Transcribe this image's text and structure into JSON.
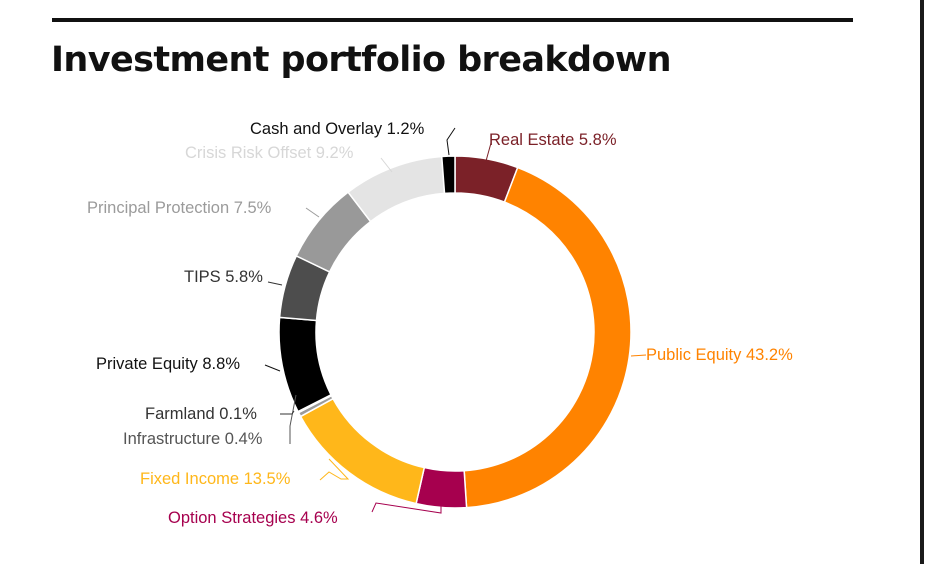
{
  "chart_data": {
    "type": "pie",
    "variant": "donut",
    "title": "Investment portfolio breakdown",
    "slices": [
      {
        "name": "Real Estate",
        "value": 5.8,
        "label": "Real Estate 5.8%",
        "color": "#7b2128",
        "label_color": "#7b2128"
      },
      {
        "name": "Public Equity",
        "value": 43.2,
        "label": "Public Equity 43.2%",
        "color": "#ff8300",
        "label_color": "#ff8300"
      },
      {
        "name": "Option Strategies",
        "value": 4.6,
        "label": "Option Strategies 4.6%",
        "color": "#a6004e",
        "label_color": "#a6004e"
      },
      {
        "name": "Fixed Income",
        "value": 13.5,
        "label": "Fixed Income 13.5%",
        "color": "#ffb71a",
        "label_color": "#ffb71a"
      },
      {
        "name": "Infrastructure",
        "value": 0.4,
        "label": "Infrastructure 0.4%",
        "color": "#9b9b9b",
        "label_color": "#555555"
      },
      {
        "name": "Farmland",
        "value": 0.1,
        "label": "Farmland 0.1%",
        "color": "#3b3b3b",
        "label_color": "#333333"
      },
      {
        "name": "Private Equity",
        "value": 8.8,
        "label": "Private Equity 8.8%",
        "color": "#000000",
        "label_color": "#111111"
      },
      {
        "name": "TIPS",
        "value": 5.8,
        "label": "TIPS 5.8%",
        "color": "#4d4d4d",
        "label_color": "#333333"
      },
      {
        "name": "Principal Protection",
        "value": 7.5,
        "label": "Principal Protection 7.5%",
        "color": "#999999",
        "label_color": "#9b9b9b"
      },
      {
        "name": "Crisis Risk Offset",
        "value": 9.2,
        "label": "Crisis Risk Offset 9.2%",
        "color": "#e4e4e4",
        "label_color": "#d7d7d7"
      },
      {
        "name": "Cash and Overlay",
        "value": 1.2,
        "label": "Cash and Overlay 1.2%",
        "color": "#000000",
        "label_color": "#111111"
      }
    ]
  }
}
